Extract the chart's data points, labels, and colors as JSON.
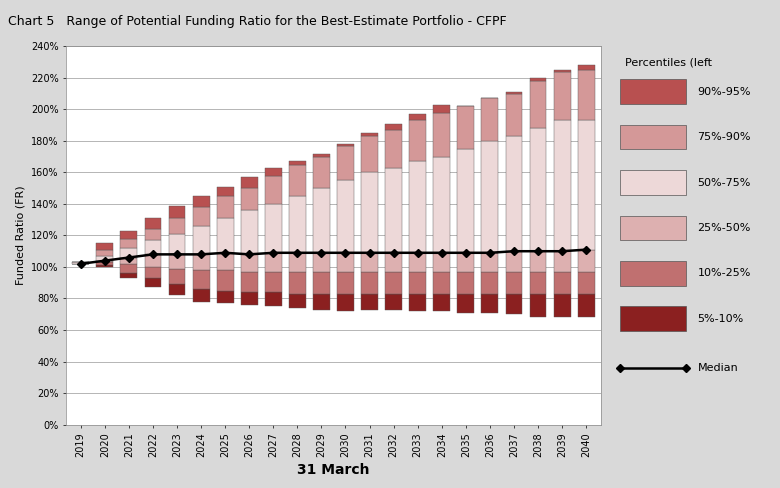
{
  "title": "Chart 5   Range of Potential Funding Ratio for the Best-Estimate Portfolio - CFPF",
  "xlabel": "31 March",
  "ylabel": "Funded Ratio (FR)",
  "years": [
    2019,
    2020,
    2021,
    2022,
    2023,
    2024,
    2025,
    2026,
    2027,
    2028,
    2029,
    2030,
    2031,
    2032,
    2033,
    2034,
    2035,
    2036,
    2037,
    2038,
    2039,
    2040
  ],
  "p5": [
    102,
    100,
    93,
    87,
    82,
    78,
    77,
    76,
    75,
    74,
    73,
    72,
    73,
    73,
    72,
    72,
    71,
    71,
    70,
    68,
    68,
    68
  ],
  "p10": [
    102,
    101,
    96,
    93,
    89,
    86,
    85,
    84,
    84,
    83,
    83,
    83,
    83,
    83,
    83,
    83,
    83,
    83,
    83,
    83,
    83,
    83
  ],
  "p25": [
    102,
    103,
    102,
    100,
    99,
    98,
    98,
    97,
    97,
    97,
    97,
    97,
    97,
    97,
    97,
    97,
    97,
    97,
    97,
    97,
    97,
    97
  ],
  "p50": [
    102,
    104,
    106,
    108,
    108,
    108,
    109,
    108,
    109,
    109,
    109,
    109,
    109,
    109,
    109,
    109,
    109,
    109,
    110,
    110,
    110,
    111
  ],
  "p75": [
    103,
    107,
    112,
    117,
    121,
    126,
    131,
    136,
    140,
    145,
    150,
    155,
    160,
    163,
    167,
    170,
    175,
    180,
    183,
    188,
    193,
    193
  ],
  "p90": [
    103,
    111,
    118,
    124,
    131,
    138,
    145,
    150,
    158,
    165,
    170,
    177,
    183,
    187,
    193,
    198,
    202,
    207,
    210,
    218,
    224,
    225
  ],
  "p95": [
    103,
    115,
    123,
    131,
    139,
    145,
    151,
    157,
    163,
    167,
    172,
    178,
    185,
    191,
    197,
    203,
    202,
    207,
    211,
    220,
    225,
    228
  ],
  "colors": {
    "band_5_10": "#8B2020",
    "band_10_25": "#C07070",
    "band_25_50": "#DDB0B0",
    "band_50_75": "#EDD8D8",
    "band_75_90": "#D49898",
    "band_90_95": "#B85050"
  },
  "legend_labels": [
    "90%-95%",
    "75%-90%",
    "50%-75%",
    "25%-50%",
    "10%-25%",
    "5%-10%"
  ],
  "legend_colors": [
    "#B85050",
    "#D49898",
    "#EDD8D8",
    "#DDB0B0",
    "#C07070",
    "#8B2020"
  ],
  "bg_color": "#D9D9D9",
  "plot_bg": "#FFFFFF",
  "title_fontsize": 9,
  "axis_fontsize": 7,
  "label_fontsize": 8
}
